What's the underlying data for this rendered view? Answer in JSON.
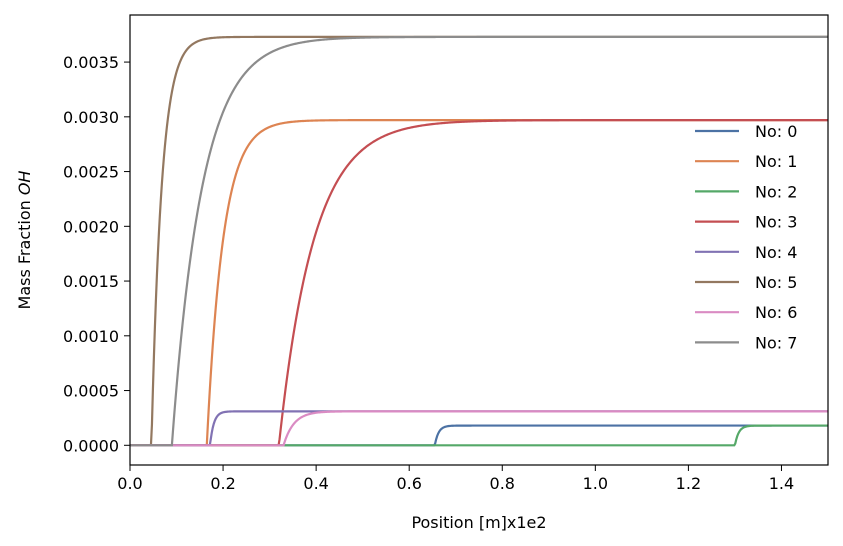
{
  "chart_data": {
    "type": "line",
    "xlabel": "Position [m]x1e2",
    "ylabel_prefix": "Mass Fraction ",
    "ylabel_species": "OH",
    "xlim": [
      0.0,
      1.5
    ],
    "ylim": [
      -0.00018,
      0.00393
    ],
    "x_ticks": [
      "0.0",
      "0.2",
      "0.4",
      "0.6",
      "0.8",
      "1.0",
      "1.2",
      "1.4"
    ],
    "y_ticks": [
      "0.0000",
      "0.0005",
      "0.0010",
      "0.0015",
      "0.0020",
      "0.0025",
      "0.0030",
      "0.0035"
    ],
    "legend_position": "right",
    "legend_frame": false,
    "grid": false,
    "series": [
      {
        "name": "No: 0",
        "color": "#4c72a4",
        "x0": 0.655,
        "ymax": 0.00018,
        "w": 0.008
      },
      {
        "name": "No: 1",
        "color": "#dd8452",
        "x0": 0.165,
        "ymax": 0.00297,
        "w": 0.035
      },
      {
        "name": "No: 2",
        "color": "#55a868",
        "x0": 1.3,
        "ymax": 0.00018,
        "w": 0.008
      },
      {
        "name": "No: 3",
        "color": "#c44e52",
        "x0": 0.32,
        "ymax": 0.00297,
        "w": 0.075
      },
      {
        "name": "No: 4",
        "color": "#8172b3",
        "x0": 0.172,
        "ymax": 0.00031,
        "w": 0.008
      },
      {
        "name": "No: 5",
        "color": "#937860",
        "x0": 0.046,
        "ymax": 0.00373,
        "w": 0.022
      },
      {
        "name": "No: 6",
        "color": "#da8bc3",
        "x0": 0.33,
        "ymax": 0.00031,
        "w": 0.022
      },
      {
        "name": "No: 7",
        "color": "#8c8c8c",
        "x0": 0.09,
        "ymax": 0.00373,
        "w": 0.065
      }
    ]
  }
}
